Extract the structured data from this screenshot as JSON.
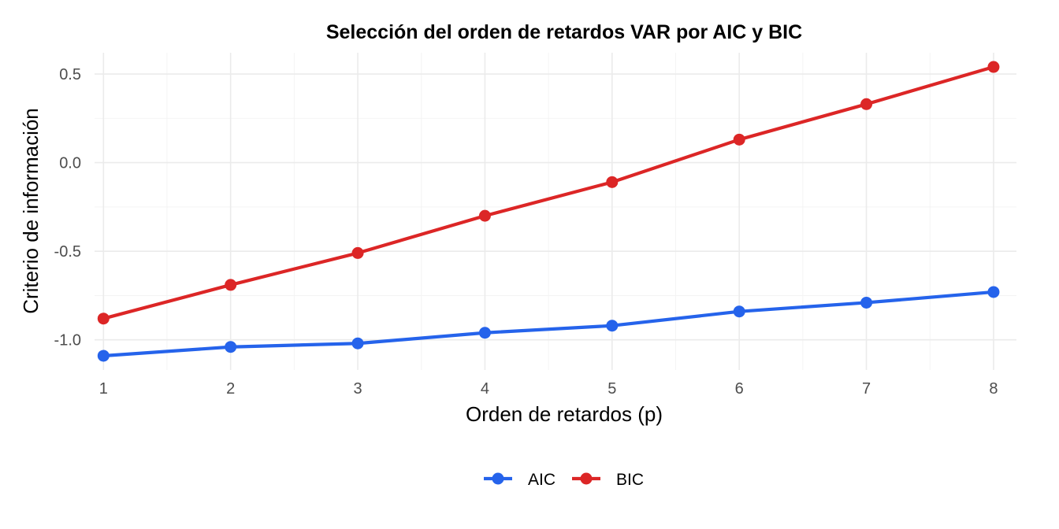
{
  "chart_data": {
    "type": "line",
    "title": "Selección del orden de retardos VAR por AIC y BIC",
    "xlabel": "Orden de retardos (p)",
    "ylabel": "Criterio de información",
    "x": [
      1,
      2,
      3,
      4,
      5,
      6,
      7,
      8
    ],
    "xlim": [
      0.93,
      8.18
    ],
    "ylim": [
      -1.17,
      0.62
    ],
    "x_ticks": [
      "1",
      "2",
      "3",
      "4",
      "5",
      "6",
      "7",
      "8"
    ],
    "y_ticks": [
      {
        "value": -1.0,
        "label": "-1.0"
      },
      {
        "value": -0.5,
        "label": "-0.5"
      },
      {
        "value": 0.0,
        "label": "0.0"
      },
      {
        "value": 0.5,
        "label": "0.5"
      }
    ],
    "grid": true,
    "legend_position": "bottom",
    "series": [
      {
        "name": "AIC",
        "color": "#2563eb",
        "values": [
          -1.09,
          -1.04,
          -1.02,
          -0.96,
          -0.92,
          -0.84,
          -0.79,
          -0.73
        ]
      },
      {
        "name": "BIC",
        "color": "#dc2626",
        "values": [
          -0.88,
          -0.69,
          -0.51,
          -0.3,
          -0.11,
          0.13,
          0.33,
          0.54
        ]
      }
    ]
  }
}
